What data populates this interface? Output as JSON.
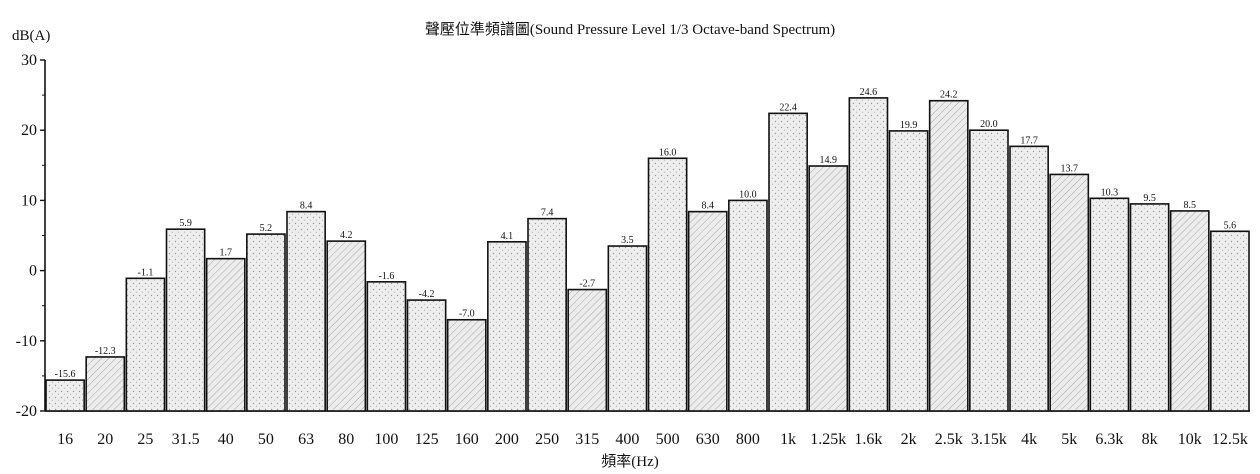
{
  "chart_data": {
    "type": "bar",
    "title": "聲壓位準頻譜圖(Sound Pressure Level 1/3 Octave-band Spectrum)",
    "xlabel": "頻率(Hz)",
    "ylabel": "dB(A)",
    "ylim": [
      -20,
      30
    ],
    "yticks": [
      30,
      20,
      10,
      0,
      -10,
      -20
    ],
    "categories": [
      "16",
      "20",
      "25",
      "31.5",
      "40",
      "50",
      "63",
      "80",
      "100",
      "125",
      "160",
      "200",
      "250",
      "315",
      "400",
      "500",
      "630",
      "800",
      "1k",
      "1.25k",
      "1.6k",
      "2k",
      "2.5k",
      "3.15k",
      "4k",
      "5k",
      "6.3k",
      "8k",
      "10k",
      "12.5k"
    ],
    "values": [
      -15.6,
      -12.3,
      -1.1,
      5.9,
      1.7,
      5.2,
      8.4,
      4.2,
      -1.6,
      -4.2,
      -7.0,
      4.1,
      7.4,
      -2.7,
      3.5,
      16.0,
      8.4,
      10.0,
      22.4,
      14.9,
      24.6,
      19.9,
      24.2,
      20.0,
      17.7,
      13.7,
      10.3,
      9.5,
      8.5,
      5.6
    ],
    "value_labels": [
      "-15.6",
      "-12.3",
      "-1.1",
      "5.9",
      "1.7",
      "5.2",
      "8.4",
      "4.2",
      "-1.6",
      "-4.2",
      "-7.0",
      "4.1",
      "7.4",
      "-2.7",
      "3.5",
      "16.0",
      "8.4",
      "10.0",
      "22.4",
      "14.9",
      "24.6",
      "19.9",
      "24.2",
      "20.0",
      "17.7",
      "13.7",
      "10.3",
      "9.5",
      "8.5",
      "5.6"
    ],
    "grid": false,
    "bar_fill": "#e6e6e6",
    "bar_stroke": "#111111"
  }
}
